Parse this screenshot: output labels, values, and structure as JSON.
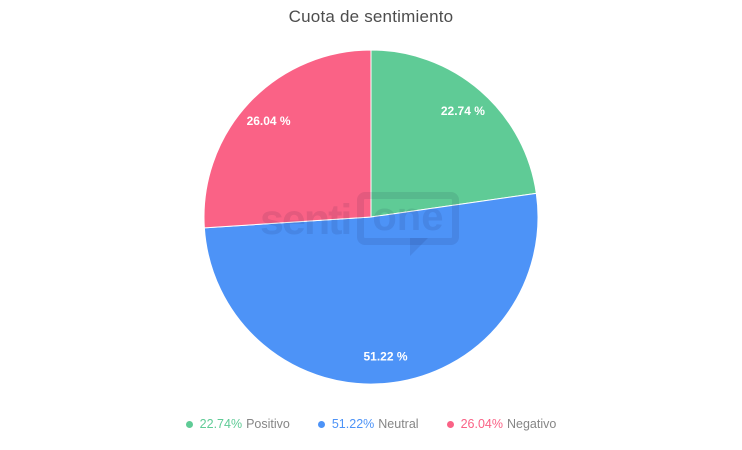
{
  "page": {
    "background": "#ffffff"
  },
  "chart_data": {
    "type": "pie",
    "title": "Cuota de sentimiento",
    "title_color": "#4d4d4d",
    "start_angle_deg": 0,
    "direction": "clockwise",
    "legend_position": "bottom",
    "slice_label_color": "#ffffff",
    "legend_text_color": "#868686",
    "slices": [
      {
        "name": "Positivo",
        "value": 22.74,
        "color": "#5FCB96",
        "slice_label": "22.74 %",
        "legend_pct": "22.74%"
      },
      {
        "name": "Neutral",
        "value": 51.22,
        "color": "#4D93F7",
        "slice_label": "51.22 %",
        "legend_pct": "51.22%"
      },
      {
        "name": "Negativo",
        "value": 26.04,
        "color": "#FA6286",
        "slice_label": "26.04 %",
        "legend_pct": "26.04%"
      }
    ]
  },
  "watermark": {
    "text_left": "senti",
    "text_bubble": "one"
  }
}
